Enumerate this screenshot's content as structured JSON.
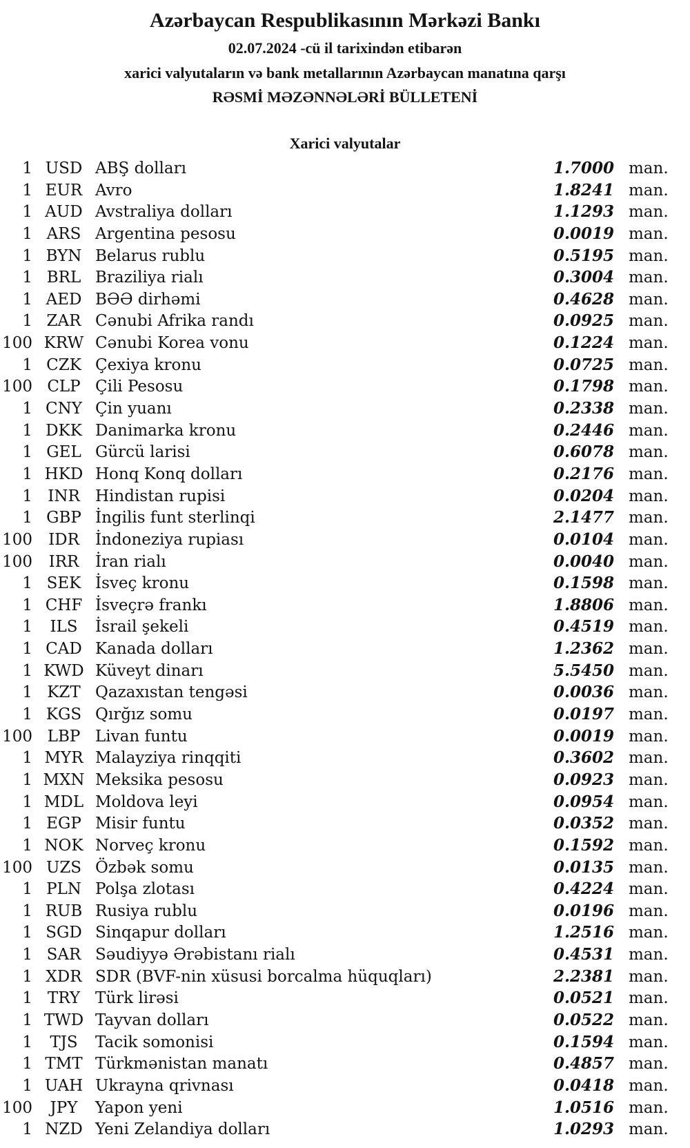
{
  "header": {
    "bank_title": "Azərbaycan Respublikasının Mərkəzi Bankı",
    "date_line": "02.07.2024 -cü il tarixindən etibarən",
    "subtitle_line": "xarici valyutaların və bank metallarının Azərbaycan manatına qarşı",
    "bulletin_title": "RƏSMİ MƏZƏNNƏLƏRİ BÜLLETENİ"
  },
  "section": {
    "title": "Xarici valyutalar"
  },
  "table": {
    "rows": [
      {
        "qty": "1",
        "code": "USD",
        "name": "ABŞ dolları",
        "rate": "1.7000",
        "unit": "man."
      },
      {
        "qty": "1",
        "code": "EUR",
        "name": "Avro",
        "rate": "1.8241",
        "unit": "man."
      },
      {
        "qty": "1",
        "code": "AUD",
        "name": "Avstraliya dolları",
        "rate": "1.1293",
        "unit": "man."
      },
      {
        "qty": "1",
        "code": "ARS",
        "name": "Argentina pesosu",
        "rate": "0.0019",
        "unit": "man."
      },
      {
        "qty": "1",
        "code": "BYN",
        "name": "Belarus rublu",
        "rate": "0.5195",
        "unit": "man."
      },
      {
        "qty": "1",
        "code": "BRL",
        "name": "Braziliya rialı",
        "rate": "0.3004",
        "unit": "man."
      },
      {
        "qty": "1",
        "code": "AED",
        "name": "BƏƏ dirhəmi",
        "rate": "0.4628",
        "unit": "man."
      },
      {
        "qty": "1",
        "code": "ZAR",
        "name": "Cənubi Afrika randı",
        "rate": "0.0925",
        "unit": "man."
      },
      {
        "qty": "100",
        "code": "KRW",
        "name": "Cənubi Korea vonu",
        "rate": "0.1224",
        "unit": "man."
      },
      {
        "qty": "1",
        "code": "CZK",
        "name": "Çexiya kronu",
        "rate": "0.0725",
        "unit": "man."
      },
      {
        "qty": "100",
        "code": "CLP",
        "name": "Çili Pesosu",
        "rate": "0.1798",
        "unit": "man."
      },
      {
        "qty": "1",
        "code": "CNY",
        "name": "Çin yuanı",
        "rate": "0.2338",
        "unit": "man."
      },
      {
        "qty": "1",
        "code": "DKK",
        "name": "Danimarka kronu",
        "rate": "0.2446",
        "unit": "man."
      },
      {
        "qty": "1",
        "code": "GEL",
        "name": "Gürcü larisi",
        "rate": "0.6078",
        "unit": "man."
      },
      {
        "qty": "1",
        "code": "HKD",
        "name": "Honq Konq dolları",
        "rate": "0.2176",
        "unit": "man."
      },
      {
        "qty": "1",
        "code": "INR",
        "name": "Hindistan rupisi",
        "rate": "0.0204",
        "unit": "man."
      },
      {
        "qty": "1",
        "code": "GBP",
        "name": "İngilis funt sterlinqi",
        "rate": "2.1477",
        "unit": "man."
      },
      {
        "qty": "100",
        "code": "IDR",
        "name": "İndoneziya rupiası",
        "rate": "0.0104",
        "unit": "man."
      },
      {
        "qty": "100",
        "code": "IRR",
        "name": "İran rialı",
        "rate": "0.0040",
        "unit": "man."
      },
      {
        "qty": "1",
        "code": "SEK",
        "name": "İsveç kronu",
        "rate": "0.1598",
        "unit": "man."
      },
      {
        "qty": "1",
        "code": "CHF",
        "name": "İsveçrə frankı",
        "rate": "1.8806",
        "unit": "man."
      },
      {
        "qty": "1",
        "code": "ILS",
        "name": "İsrail şekeli",
        "rate": "0.4519",
        "unit": "man."
      },
      {
        "qty": "1",
        "code": "CAD",
        "name": "Kanada dolları",
        "rate": "1.2362",
        "unit": "man."
      },
      {
        "qty": "1",
        "code": "KWD",
        "name": "Küveyt dinarı",
        "rate": "5.5450",
        "unit": "man."
      },
      {
        "qty": "1",
        "code": "KZT",
        "name": "Qazaxıstan tengəsi",
        "rate": "0.0036",
        "unit": "man."
      },
      {
        "qty": "1",
        "code": "KGS",
        "name": "Qırğız somu",
        "rate": "0.0197",
        "unit": "man."
      },
      {
        "qty": "100",
        "code": "LBP",
        "name": "Livan funtu",
        "rate": "0.0019",
        "unit": "man."
      },
      {
        "qty": "1",
        "code": "MYR",
        "name": "Malayziya rinqqiti",
        "rate": "0.3602",
        "unit": "man."
      },
      {
        "qty": "1",
        "code": "MXN",
        "name": "Meksika pesosu",
        "rate": "0.0923",
        "unit": "man."
      },
      {
        "qty": "1",
        "code": "MDL",
        "name": "Moldova leyi",
        "rate": "0.0954",
        "unit": "man."
      },
      {
        "qty": "1",
        "code": "EGP",
        "name": "Misir funtu",
        "rate": "0.0352",
        "unit": "man."
      },
      {
        "qty": "1",
        "code": "NOK",
        "name": "Norveç kronu",
        "rate": "0.1592",
        "unit": "man."
      },
      {
        "qty": "100",
        "code": "UZS",
        "name": "Özbək somu",
        "rate": "0.0135",
        "unit": "man."
      },
      {
        "qty": "1",
        "code": "PLN",
        "name": "Polşa zlotası",
        "rate": "0.4224",
        "unit": "man."
      },
      {
        "qty": "1",
        "code": "RUB",
        "name": "Rusiya rublu",
        "rate": "0.0196",
        "unit": "man."
      },
      {
        "qty": "1",
        "code": "SGD",
        "name": "Sinqapur dolları",
        "rate": "1.2516",
        "unit": "man."
      },
      {
        "qty": "1",
        "code": "SAR",
        "name": "Səudiyyə Ərəbistanı rialı",
        "rate": "0.4531",
        "unit": "man."
      },
      {
        "qty": "1",
        "code": "XDR",
        "name": "SDR (BVF-nin xüsusi borcalma hüquqları)",
        "rate": "2.2381",
        "unit": "man."
      },
      {
        "qty": "1",
        "code": "TRY",
        "name": "Türk lirəsi",
        "rate": "0.0521",
        "unit": "man."
      },
      {
        "qty": "1",
        "code": "TWD",
        "name": "Tayvan dolları",
        "rate": "0.0522",
        "unit": "man."
      },
      {
        "qty": "1",
        "code": "TJS",
        "name": "Tacik somonisi",
        "rate": "0.1594",
        "unit": "man."
      },
      {
        "qty": "1",
        "code": "TMT",
        "name": "Türkmənistan manatı",
        "rate": "0.4857",
        "unit": "man."
      },
      {
        "qty": "1",
        "code": "UAH",
        "name": "Ukrayna qrivnası",
        "rate": "0.0418",
        "unit": "man."
      },
      {
        "qty": "100",
        "code": "JPY",
        "name": "Yapon yeni",
        "rate": "1.0516",
        "unit": "man."
      },
      {
        "qty": "1",
        "code": "NZD",
        "name": "Yeni Zelandiya dolları",
        "rate": "1.0293",
        "unit": "man."
      }
    ]
  }
}
